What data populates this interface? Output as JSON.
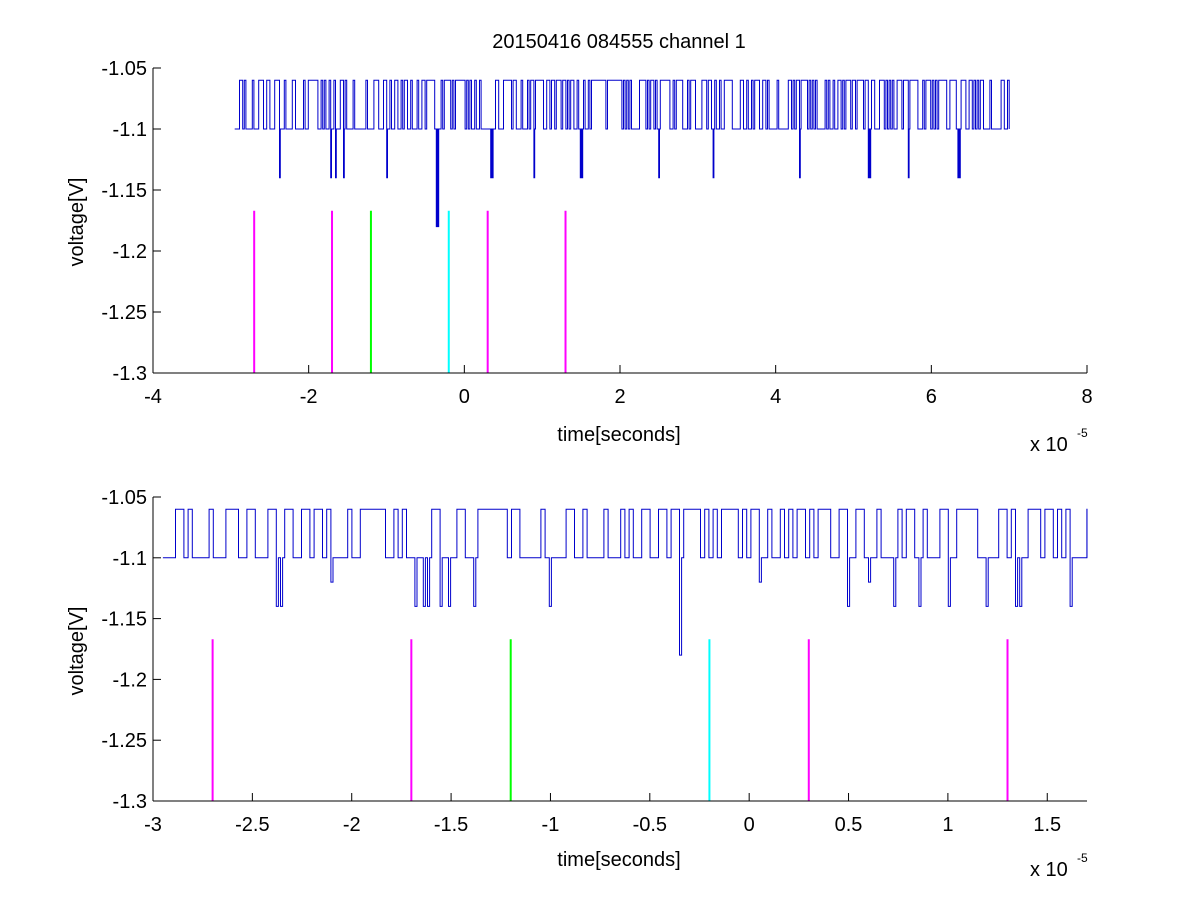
{
  "figure": {
    "title": "20150416 084555 channel 1"
  },
  "chart_data": [
    {
      "type": "line",
      "title": "20150416 084555 channel 1",
      "xlabel": "time[seconds]",
      "ylabel": "voltage[V]",
      "x_exponent_label": "x 10",
      "x_exponent": "-5",
      "xlim": [
        -4,
        8
      ],
      "ylim": [
        -1.3,
        -1.05
      ],
      "xticks": [
        -4,
        -2,
        0,
        2,
        4,
        6,
        8
      ],
      "xtick_labels": [
        "-4",
        "-2",
        "0",
        "2",
        "4",
        "6",
        "8"
      ],
      "yticks": [
        -1.05,
        -1.1,
        -1.15,
        -1.2,
        -1.25,
        -1.3
      ],
      "ytick_labels": [
        "-1.05",
        "-1.1",
        "-1.15",
        "-1.2",
        "-1.25",
        "-1.3"
      ],
      "grid": false,
      "signal": {
        "color": "#0000cc",
        "t_start": -2.95,
        "t_end": 7.0,
        "baseline": -1.1,
        "high_level": -1.06,
        "dips": [
          {
            "t": -2.37,
            "v": -1.14
          },
          {
            "t": -1.72,
            "v": -1.14
          },
          {
            "t": -1.65,
            "v": -1.14
          },
          {
            "t": -1.55,
            "v": -1.14
          },
          {
            "t": -1.0,
            "v": -1.14
          },
          {
            "t": -0.35,
            "v": -1.18
          },
          {
            "t": 0.35,
            "v": -1.14
          },
          {
            "t": 0.9,
            "v": -1.14
          },
          {
            "t": 1.5,
            "v": -1.14
          },
          {
            "t": 2.5,
            "v": -1.14
          },
          {
            "t": 3.2,
            "v": -1.14
          },
          {
            "t": 4.3,
            "v": -1.14
          },
          {
            "t": 5.2,
            "v": -1.14
          },
          {
            "t": 5.7,
            "v": -1.14
          },
          {
            "t": 6.35,
            "v": -1.14
          }
        ]
      },
      "markers": [
        {
          "t": -2.7,
          "color": "#ff00ff"
        },
        {
          "t": -1.7,
          "color": "#ff00ff"
        },
        {
          "t": -1.2,
          "color": "#00ff00"
        },
        {
          "t": -0.2,
          "color": "#00ffff"
        },
        {
          "t": 0.3,
          "color": "#ff00ff"
        },
        {
          "t": 1.3,
          "color": "#ff00ff"
        }
      ],
      "marker_range": [
        -1.3,
        -1.167
      ]
    },
    {
      "type": "line",
      "title": "",
      "xlabel": "time[seconds]",
      "ylabel": "voltage[V]",
      "x_exponent_label": "x 10",
      "x_exponent": "-5",
      "xlim": [
        -3,
        1.7
      ],
      "ylim": [
        -1.3,
        -1.05
      ],
      "xticks": [
        -3,
        -2.5,
        -2,
        -1.5,
        -1,
        -0.5,
        0,
        0.5,
        1,
        1.5
      ],
      "xtick_labels": [
        "-3",
        "-2.5",
        "-2",
        "-1.5",
        "-1",
        "-0.5",
        "0",
        "0.5",
        "1",
        "1.5"
      ],
      "yticks": [
        -1.05,
        -1.1,
        -1.15,
        -1.2,
        -1.25,
        -1.3
      ],
      "ytick_labels": [
        "-1.05",
        "-1.1",
        "-1.15",
        "-1.2",
        "-1.25",
        "-1.3"
      ],
      "grid": false,
      "signal": {
        "color": "#0000cc",
        "t_start": -2.95,
        "t_end": 1.7,
        "baseline": -1.1,
        "high_level": -1.06,
        "dips": [
          {
            "t": -2.37,
            "v": -1.14
          },
          {
            "t": -2.1,
            "v": -1.12
          },
          {
            "t": -1.68,
            "v": -1.14
          },
          {
            "t": -1.63,
            "v": -1.14
          },
          {
            "t": -1.56,
            "v": -1.14
          },
          {
            "t": -1.52,
            "v": -1.14
          },
          {
            "t": -1.38,
            "v": -1.14
          },
          {
            "t": -1.0,
            "v": -1.14
          },
          {
            "t": -0.35,
            "v": -1.18
          },
          {
            "t": 0.05,
            "v": -1.12
          },
          {
            "t": 0.5,
            "v": -1.14
          },
          {
            "t": 0.6,
            "v": -1.12
          },
          {
            "t": 0.72,
            "v": -1.14
          },
          {
            "t": 0.73,
            "v": -1.14
          },
          {
            "t": 0.86,
            "v": -1.14
          },
          {
            "t": 1.0,
            "v": -1.14
          },
          {
            "t": 1.2,
            "v": -1.14
          },
          {
            "t": 1.35,
            "v": -1.14
          },
          {
            "t": 1.62,
            "v": -1.14
          }
        ]
      },
      "markers": [
        {
          "t": -2.7,
          "color": "#ff00ff"
        },
        {
          "t": -1.7,
          "color": "#ff00ff"
        },
        {
          "t": -1.2,
          "color": "#00ff00"
        },
        {
          "t": -0.2,
          "color": "#00ffff"
        },
        {
          "t": 0.3,
          "color": "#ff00ff"
        },
        {
          "t": 1.3,
          "color": "#ff00ff"
        }
      ],
      "marker_range": [
        -1.3,
        -1.167
      ]
    }
  ]
}
